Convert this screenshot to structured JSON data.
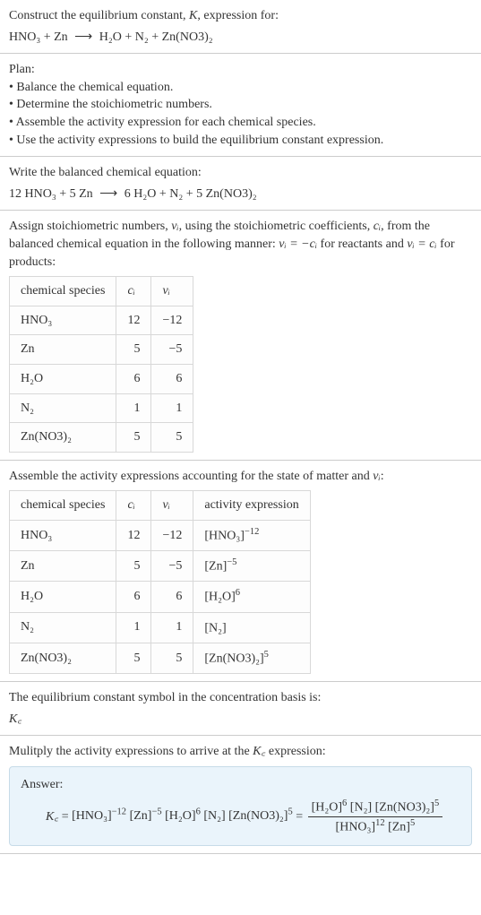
{
  "header": {
    "line1": "Construct the equilibrium constant, ",
    "K": "K",
    "line1_after": ", expression for:",
    "reactants": "HNO₃ + Zn",
    "arrow": "⟶",
    "products": "H₂O + N₂ + Zn(NO3)₂"
  },
  "plan": {
    "title": "Plan:",
    "items": [
      "Balance the chemical equation.",
      "Determine the stoichiometric numbers.",
      "Assemble the activity expression for each chemical species.",
      "Use the activity expressions to build the equilibrium constant expression."
    ]
  },
  "balanced": {
    "intro": "Write the balanced chemical equation:",
    "lhs": "12 HNO₃ + 5 Zn",
    "arrow": "⟶",
    "rhs": "6 H₂O + N₂ + 5 Zn(NO3)₂"
  },
  "stoich": {
    "intro_a": "Assign stoichiometric numbers, ",
    "nu": "νᵢ",
    "intro_b": ", using the stoichiometric coefficients, ",
    "ci": "cᵢ",
    "intro_c": ", from the balanced chemical equation in the following manner: ",
    "rel1": "νᵢ = −cᵢ",
    "intro_d": " for reactants and ",
    "rel2": "νᵢ = cᵢ",
    "intro_e": " for products:"
  },
  "table1": {
    "headers": [
      "chemical species",
      "cᵢ",
      "νᵢ"
    ],
    "rows": [
      [
        "HNO₃",
        "12",
        "−12"
      ],
      [
        "Zn",
        "5",
        "−5"
      ],
      [
        "H₂O",
        "6",
        "6"
      ],
      [
        "N₂",
        "1",
        "1"
      ],
      [
        "Zn(NO3)₂",
        "5",
        "5"
      ]
    ],
    "col_widths": [
      "130px",
      "50px",
      "55px"
    ]
  },
  "assemble": {
    "intro_a": "Assemble the activity expressions accounting for the state of matter and ",
    "nu": "νᵢ",
    "intro_b": ":"
  },
  "table2": {
    "headers": [
      "chemical species",
      "cᵢ",
      "νᵢ",
      "activity expression"
    ],
    "rows": [
      {
        "sp": "HNO₃",
        "c": "12",
        "v": "−12",
        "base": "[HNO₃]",
        "exp": "−12"
      },
      {
        "sp": "Zn",
        "c": "5",
        "v": "−5",
        "base": "[Zn]",
        "exp": "−5"
      },
      {
        "sp": "H₂O",
        "c": "6",
        "v": "6",
        "base": "[H₂O]",
        "exp": "6"
      },
      {
        "sp": "N₂",
        "c": "1",
        "v": "1",
        "base": "[N₂]",
        "exp": ""
      },
      {
        "sp": "Zn(NO3)₂",
        "c": "5",
        "v": "5",
        "base": "[Zn(NO3)₂]",
        "exp": "5"
      }
    ],
    "col_widths": [
      "130px",
      "50px",
      "55px",
      "150px"
    ]
  },
  "symbol": {
    "line1": "The equilibrium constant symbol in the concentration basis is:",
    "kc": "K꜀"
  },
  "multiply": {
    "intro_a": "Mulitply the activity expressions to arrive at the ",
    "kc": "K꜀",
    "intro_b": " expression:"
  },
  "answer": {
    "label": "Answer:",
    "kc": "K꜀",
    "terms": [
      {
        "base": "[HNO₃]",
        "exp": "−12"
      },
      {
        "base": "[Zn]",
        "exp": "−5"
      },
      {
        "base": "[H₂O]",
        "exp": "6"
      },
      {
        "base": "[N₂]",
        "exp": ""
      },
      {
        "base": "[Zn(NO3)₂]",
        "exp": "5"
      }
    ],
    "frac_num": [
      {
        "base": "[H₂O]",
        "exp": "6"
      },
      {
        "base": "[N₂]",
        "exp": ""
      },
      {
        "base": "[Zn(NO3)₂]",
        "exp": "5"
      }
    ],
    "frac_den": [
      {
        "base": "[HNO₃]",
        "exp": "12"
      },
      {
        "base": "[Zn]",
        "exp": "5"
      }
    ]
  },
  "colors": {
    "text": "#333333",
    "border": "#cccccc",
    "table_border": "#d8d8d8",
    "answer_bg": "#eaf4fb",
    "answer_border": "#c7dbe8"
  }
}
